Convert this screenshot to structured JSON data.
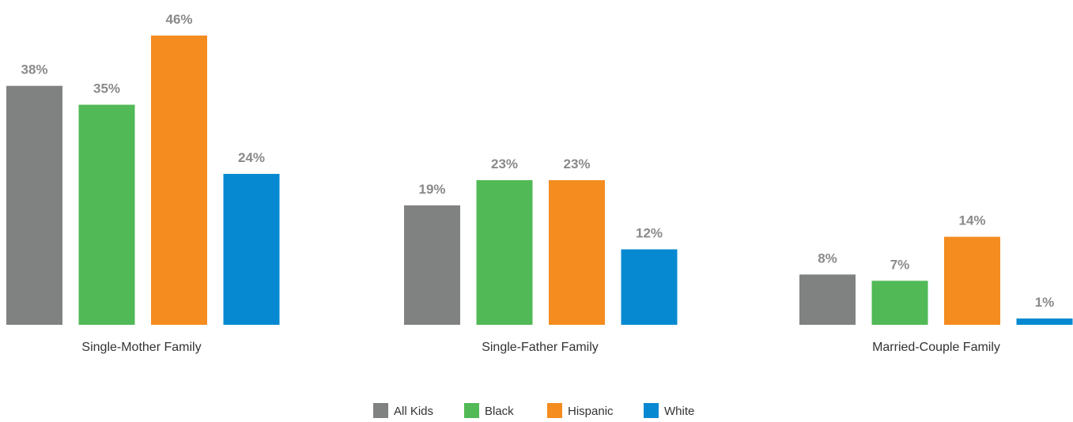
{
  "chart_data": {
    "type": "bar",
    "title": "",
    "xlabel": "",
    "ylabel": "",
    "ylim": [
      0,
      46
    ],
    "grid": false,
    "legend_position": "bottom-center",
    "value_suffix": "%",
    "categories": [
      "Single-Mother Family",
      "Single-Father Family",
      "Married-Couple Family"
    ],
    "series": [
      {
        "name": "All Kids",
        "color": "#808282",
        "values": [
          38,
          19,
          8
        ]
      },
      {
        "name": "Black",
        "color": "#51b956",
        "values": [
          35,
          23,
          7
        ]
      },
      {
        "name": "Hispanic",
        "color": "#f48c20",
        "values": [
          46,
          23,
          14
        ]
      },
      {
        "name": "White",
        "color": "#0789d1",
        "values": [
          24,
          12,
          1
        ]
      }
    ]
  }
}
